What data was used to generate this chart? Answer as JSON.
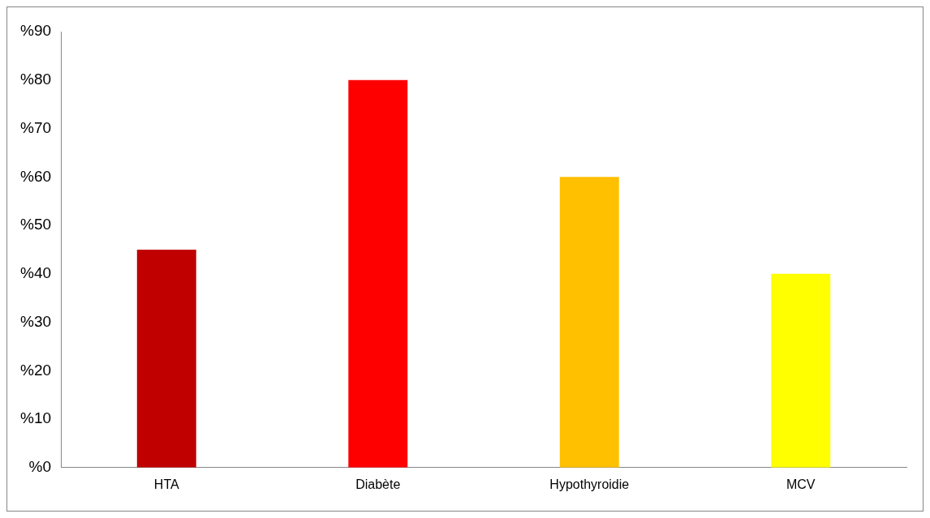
{
  "chart_data": {
    "type": "bar",
    "categories": [
      "HTA",
      "Diabète",
      "Hypothyroidie",
      "MCV"
    ],
    "values": [
      45,
      80,
      60,
      40
    ],
    "colors": [
      "#c00000",
      "#ff0000",
      "#ffc000",
      "#ffff00"
    ],
    "ylim": [
      0,
      90
    ],
    "yticks": [
      {
        "value": 0,
        "label": "%0"
      },
      {
        "value": 10,
        "label": "%10"
      },
      {
        "value": 20,
        "label": "%20"
      },
      {
        "value": 30,
        "label": "%30"
      },
      {
        "value": 40,
        "label": "%40"
      },
      {
        "value": 50,
        "label": "%50"
      },
      {
        "value": 60,
        "label": "%60"
      },
      {
        "value": 70,
        "label": "%70"
      },
      {
        "value": 80,
        "label": "%80"
      },
      {
        "value": 90,
        "label": "%90"
      }
    ],
    "grid": false,
    "legend": false
  }
}
